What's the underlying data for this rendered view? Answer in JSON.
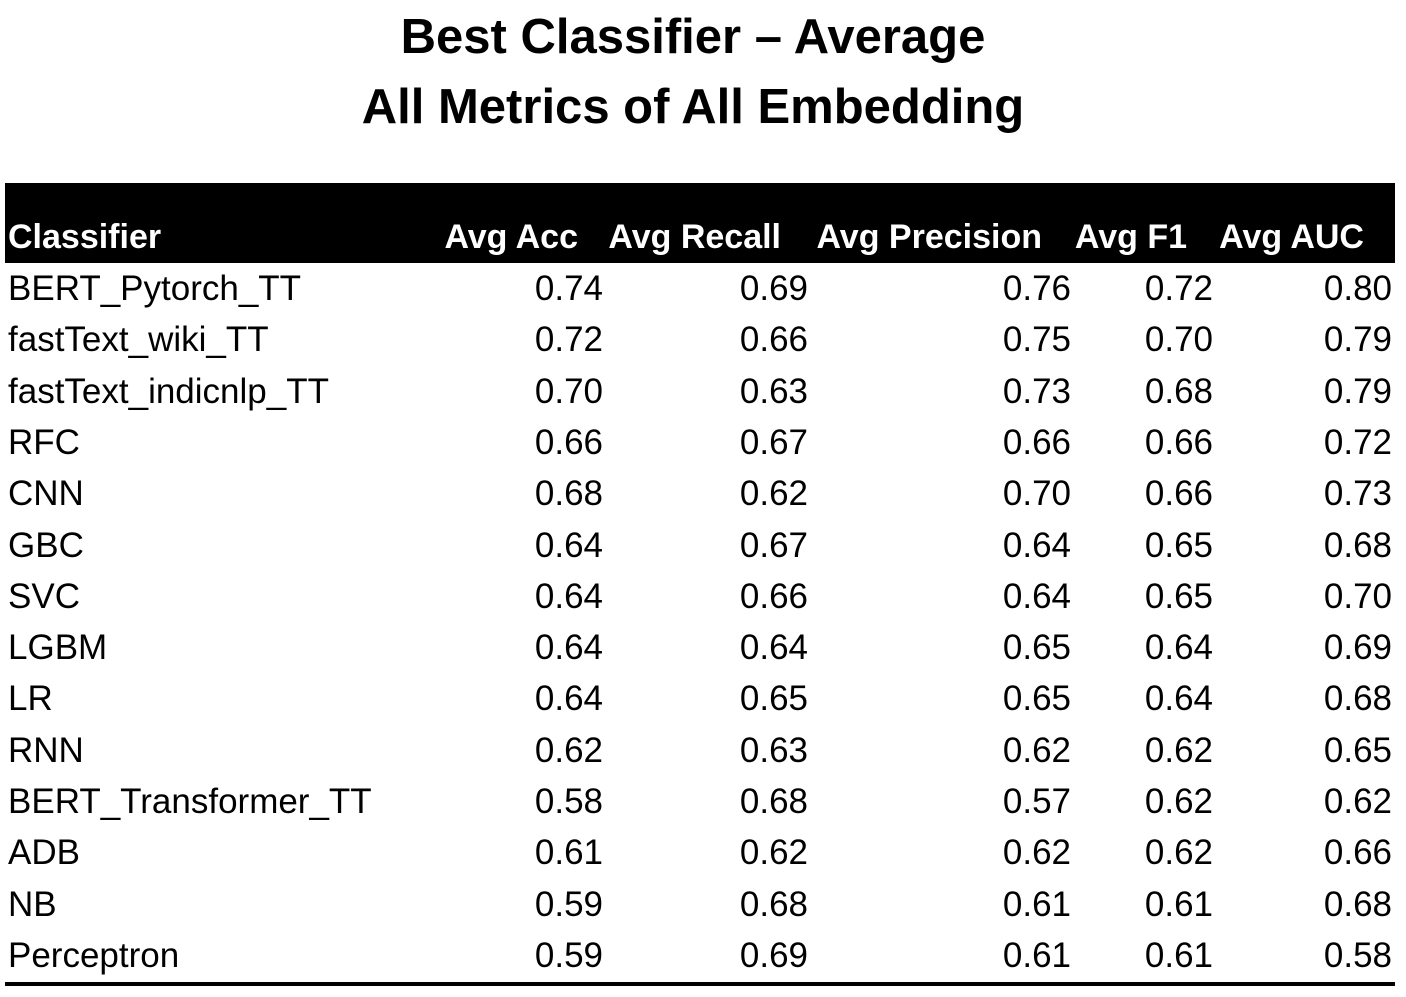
{
  "chart_data": {
    "type": "table",
    "title_lines": [
      "Best Classifier – Average",
      "All Metrics of All Embedding"
    ],
    "columns": [
      "Classifier",
      "Avg Acc",
      "Avg Recall",
      "Avg Precision",
      "Avg F1",
      "Avg AUC"
    ],
    "rows": [
      [
        "BERT_Pytorch_TT",
        "0.74",
        "0.69",
        "0.76",
        "0.72",
        "0.80"
      ],
      [
        "fastText_wiki_TT",
        "0.72",
        "0.66",
        "0.75",
        "0.70",
        "0.79"
      ],
      [
        "fastText_indicnlp_TT",
        "0.70",
        "0.63",
        "0.73",
        "0.68",
        "0.79"
      ],
      [
        "RFC",
        "0.66",
        "0.67",
        "0.66",
        "0.66",
        "0.72"
      ],
      [
        "CNN",
        "0.68",
        "0.62",
        "0.70",
        "0.66",
        "0.73"
      ],
      [
        "GBC",
        "0.64",
        "0.67",
        "0.64",
        "0.65",
        "0.68"
      ],
      [
        "SVC",
        "0.64",
        "0.66",
        "0.64",
        "0.65",
        "0.70"
      ],
      [
        "LGBM",
        "0.64",
        "0.64",
        "0.65",
        "0.64",
        "0.69"
      ],
      [
        "LR",
        "0.64",
        "0.65",
        "0.65",
        "0.64",
        "0.68"
      ],
      [
        "RNN",
        "0.62",
        "0.63",
        "0.62",
        "0.62",
        "0.65"
      ],
      [
        "BERT_Transformer_TT",
        "0.58",
        "0.68",
        "0.57",
        "0.62",
        "0.62"
      ],
      [
        "ADB",
        "0.61",
        "0.62",
        "0.62",
        "0.62",
        "0.66"
      ],
      [
        "NB",
        "0.59",
        "0.68",
        "0.61",
        "0.61",
        "0.68"
      ],
      [
        "Perceptron",
        "0.59",
        "0.69",
        "0.61",
        "0.61",
        "0.58"
      ]
    ],
    "header_background": "#000000",
    "header_text_color": "#ffffff",
    "body_text_color": "#000000"
  }
}
